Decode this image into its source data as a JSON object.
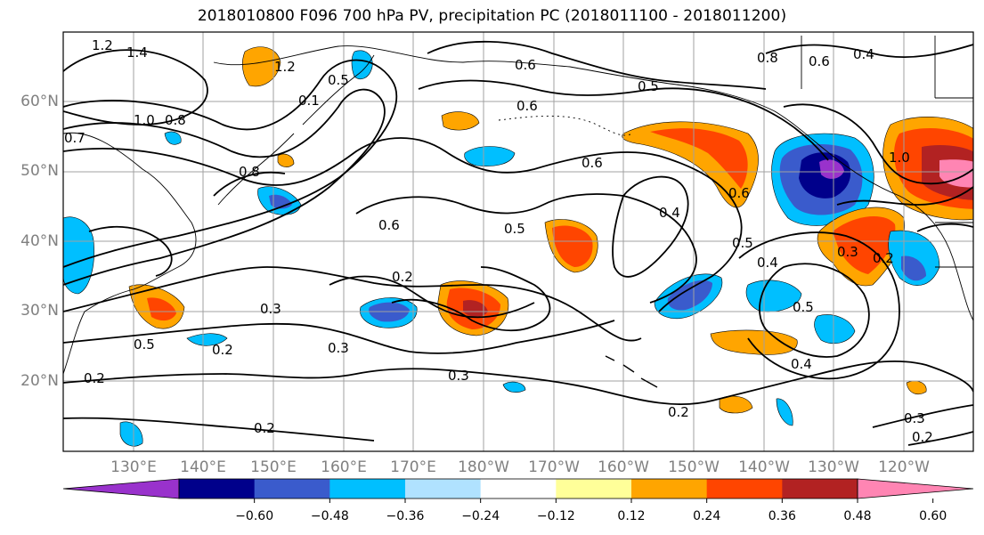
{
  "title": "2018010800 F096 700 hPa PV, precipitation PC (2018011100 - 2018011200)",
  "lat_labels": [
    "60°N",
    "50°N",
    "40°N",
    "30°N",
    "20°N"
  ],
  "lon_labels": [
    "130°E",
    "140°E",
    "150°E",
    "160°E",
    "170°E",
    "180°W",
    "170°W",
    "160°W",
    "150°W",
    "140°W",
    "130°W",
    "120°W"
  ],
  "contour_labels": [
    "1.2",
    "1.4",
    "1.2",
    "0.5",
    "0.1",
    "0.8",
    "1.0",
    "0.8",
    "0.6",
    "0.6",
    "0.5",
    "0.6",
    "0.4",
    "0.5",
    "0.6",
    "0.6",
    "0.4",
    "0.7",
    "0.5",
    "0.6",
    "0.4",
    "0.2",
    "0.3",
    "0.5",
    "0.2",
    "0.3",
    "0.3",
    "0.2",
    "0.2",
    "0.3",
    "0.2",
    "0.4",
    "0.5",
    "0.3",
    "0.2",
    "1.0",
    "0.2",
    "0.8"
  ],
  "colorbar": {
    "colors": [
      "#9932cc",
      "#00008b",
      "#3a5bcc",
      "#00bfff",
      "#b0e2ff",
      "#ffffff",
      "#ffff99",
      "#ffa500",
      "#ff4500",
      "#b22222",
      "#ff85b3"
    ],
    "tick_labels": [
      "−0.60",
      "−0.48",
      "−0.36",
      "−0.24",
      "−0.12",
      "0.12",
      "0.24",
      "0.36",
      "0.48",
      "0.60"
    ]
  },
  "legend_colors": {
    "contour": "#000000",
    "grid": "#a0a0a0",
    "coast": "#000000"
  }
}
